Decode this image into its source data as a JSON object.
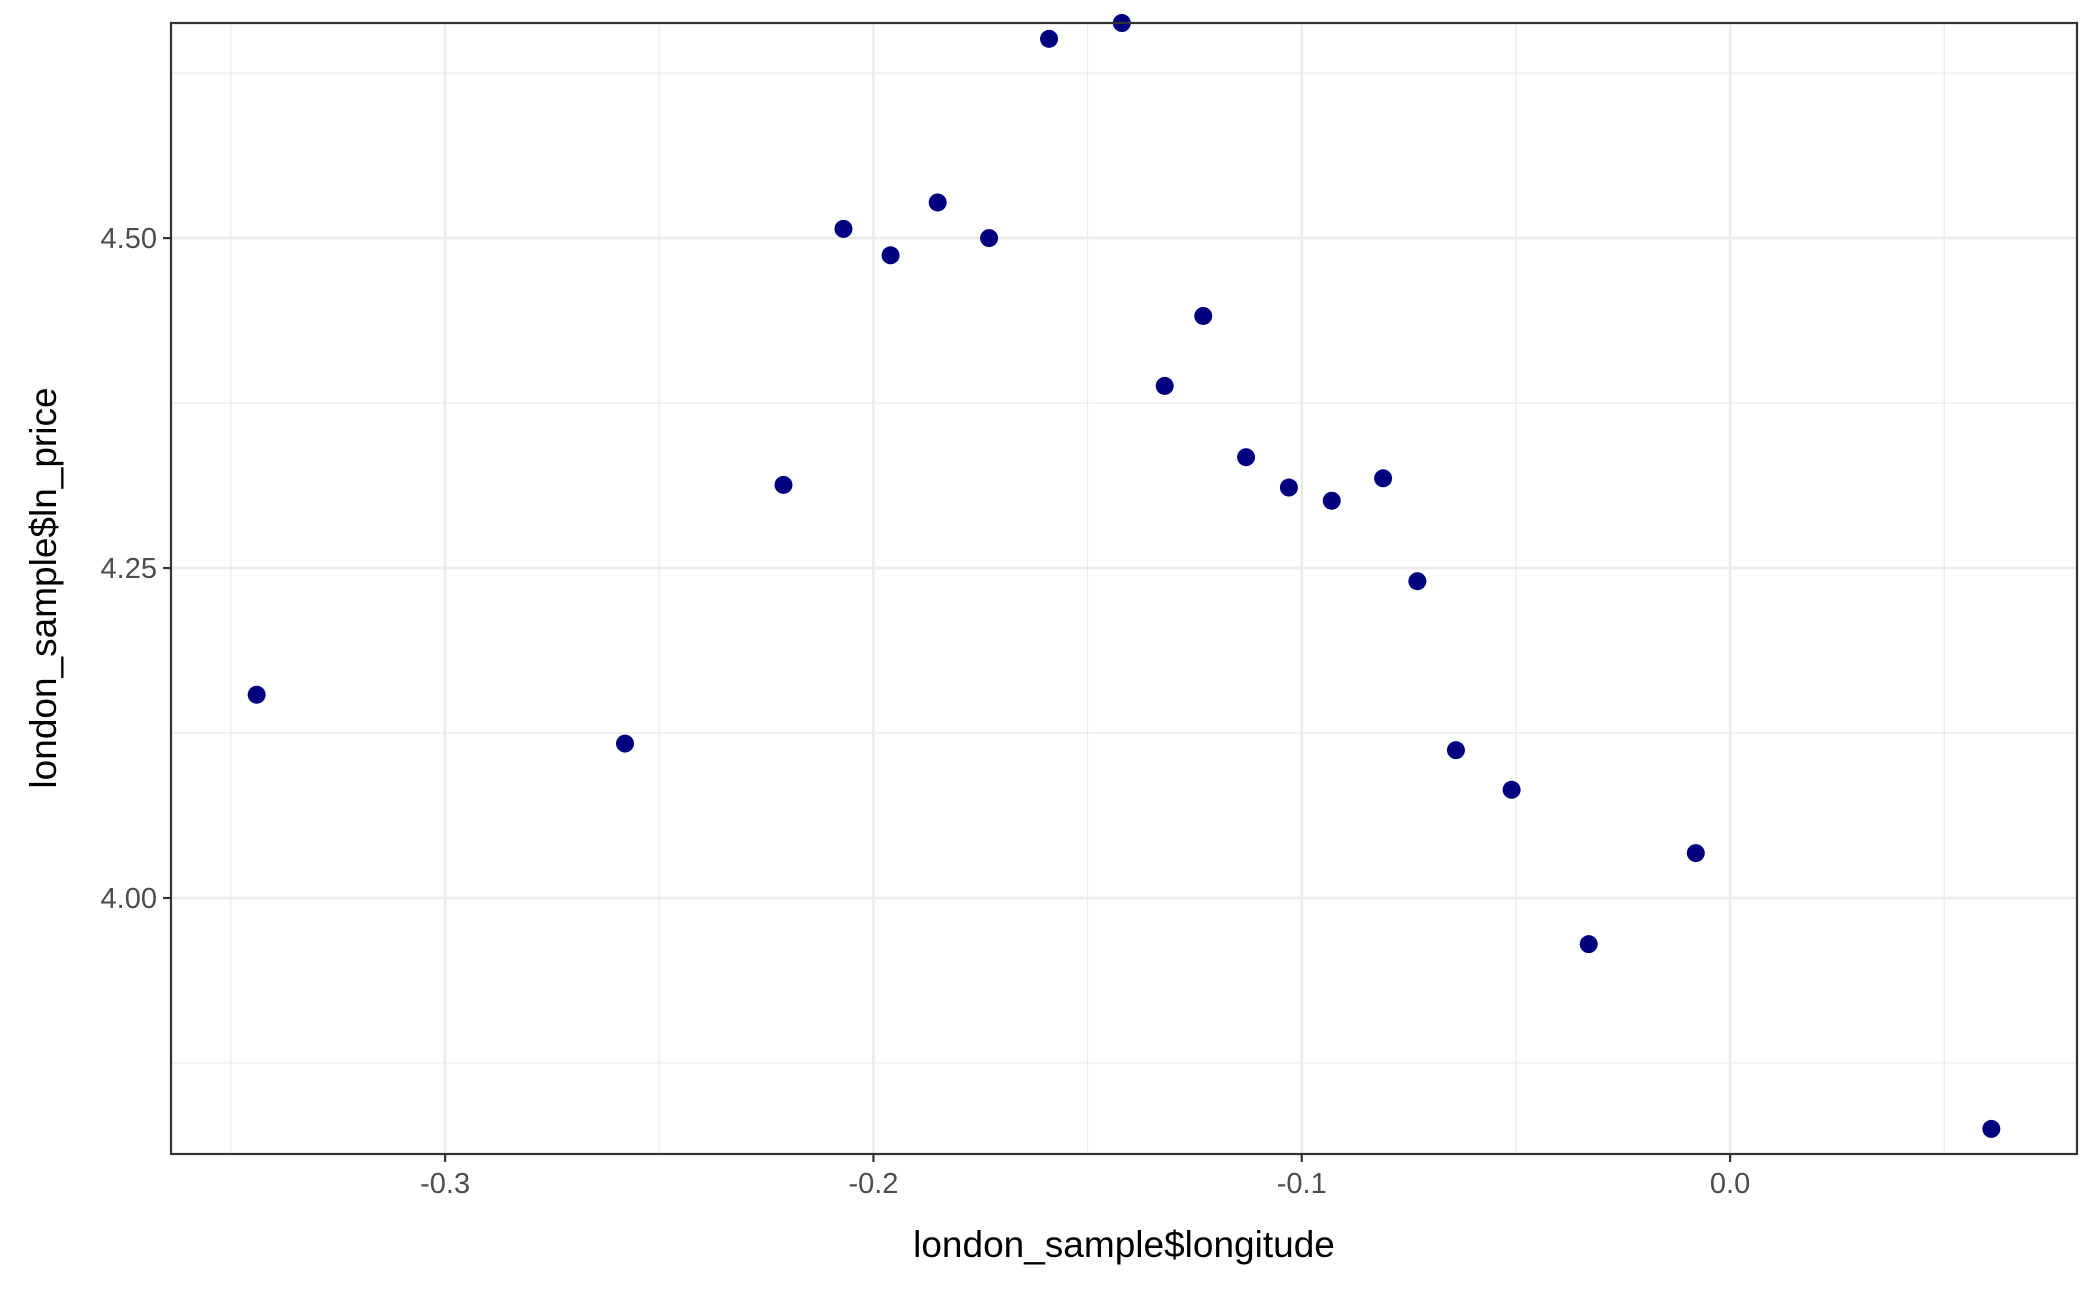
{
  "chart_data": {
    "type": "scatter",
    "xlabel": "london_sample$longitude",
    "ylabel": "london_sample$ln_price",
    "xlim": [
      -0.364,
      0.081
    ],
    "ylim": [
      3.806,
      4.663
    ],
    "x_major_ticks": [
      -0.3,
      -0.2,
      -0.1,
      0.0
    ],
    "x_tick_labels": [
      "-0.3",
      "-0.2",
      "-0.1",
      "0.0"
    ],
    "x_minor_ticks": [
      -0.35,
      -0.25,
      -0.15,
      -0.05,
      0.05
    ],
    "y_major_ticks": [
      4.0,
      4.25,
      4.5
    ],
    "y_tick_labels": [
      "4.00",
      "4.25",
      "4.50"
    ],
    "y_minor_ticks": [
      3.875,
      4.125,
      4.375,
      4.625
    ],
    "grid": true,
    "point_color": "#00007F",
    "points": [
      {
        "x": -0.344,
        "y": 4.154
      },
      {
        "x": -0.258,
        "y": 4.117
      },
      {
        "x": -0.221,
        "y": 4.313
      },
      {
        "x": -0.207,
        "y": 4.507
      },
      {
        "x": -0.196,
        "y": 4.487
      },
      {
        "x": -0.185,
        "y": 4.527
      },
      {
        "x": -0.173,
        "y": 4.5
      },
      {
        "x": -0.159,
        "y": 4.651
      },
      {
        "x": -0.142,
        "y": 4.663
      },
      {
        "x": -0.132,
        "y": 4.388
      },
      {
        "x": -0.123,
        "y": 4.441
      },
      {
        "x": -0.113,
        "y": 4.334
      },
      {
        "x": -0.103,
        "y": 4.311
      },
      {
        "x": -0.093,
        "y": 4.301
      },
      {
        "x": -0.081,
        "y": 4.318
      },
      {
        "x": -0.073,
        "y": 4.24
      },
      {
        "x": -0.064,
        "y": 4.112
      },
      {
        "x": -0.051,
        "y": 4.082
      },
      {
        "x": -0.033,
        "y": 3.965
      },
      {
        "x": -0.008,
        "y": 4.034
      },
      {
        "x": 0.061,
        "y": 3.825
      }
    ]
  }
}
